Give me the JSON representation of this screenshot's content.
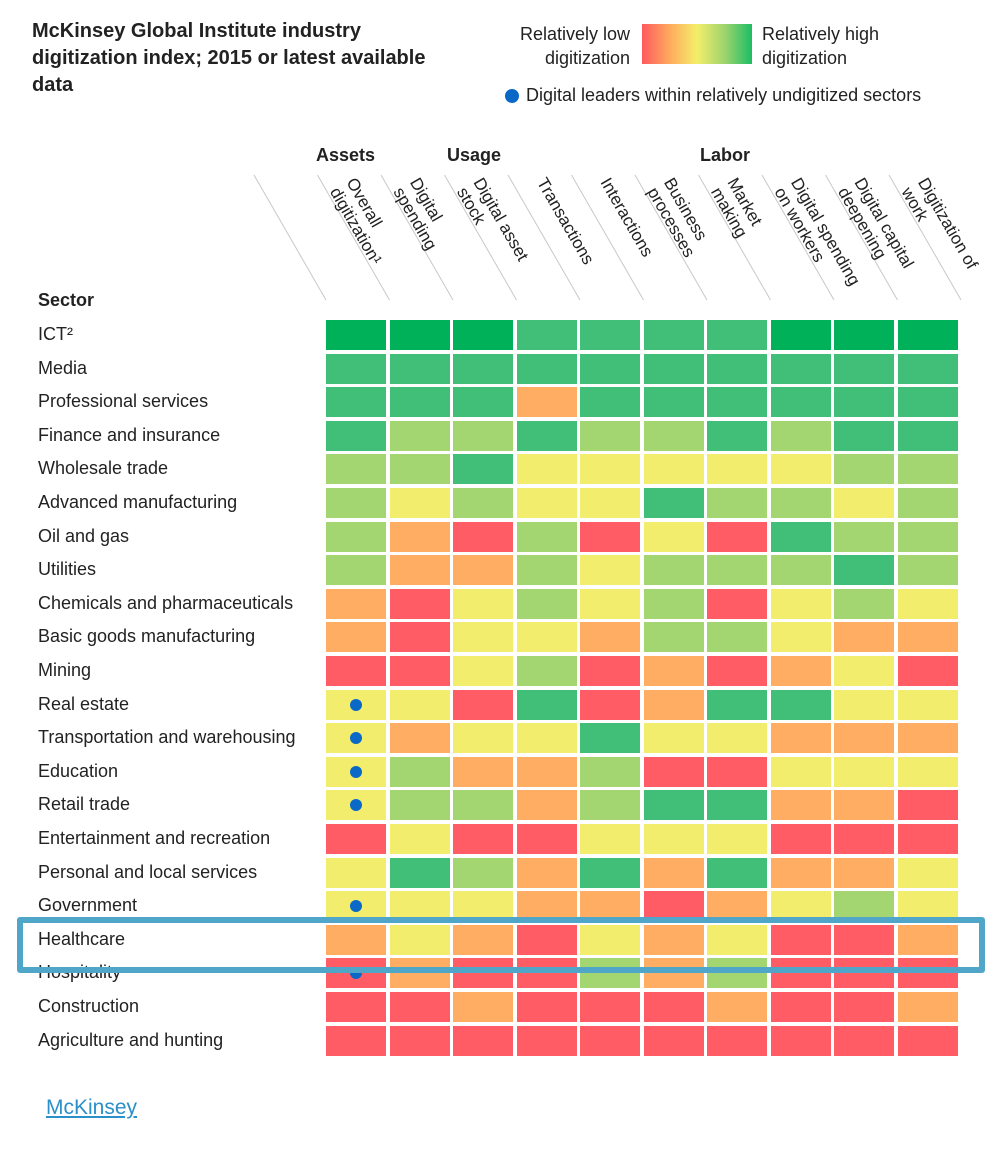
{
  "title": "McKinsey Global Institute industry digitization index; 2015 or latest available data",
  "legend": {
    "low_label": "Relatively low digitization",
    "high_label": "Relatively high digitization",
    "dot_label": "Digital leaders within relatively undigitized sectors",
    "dot_color": "#0a69c7"
  },
  "colors": {
    "dark_green": "#00b159",
    "green": "#41bf78",
    "light_green": "#a3d570",
    "yellow": "#f3ed6e",
    "orange": "#ffad63",
    "red": "#ff5c66",
    "highlight": "#4fa6c9"
  },
  "groups": {
    "assets": "Assets",
    "usage": "Usage",
    "labor": "Labor"
  },
  "sector_header": "Sector",
  "source_link": "McKinsey",
  "chart_data": {
    "type": "heatmap",
    "scale": [
      "red",
      "orange",
      "yellow",
      "light_green",
      "green",
      "dark_green"
    ],
    "columns": [
      "Overall digitization¹",
      "Digital spending",
      "Digital asset stock",
      "Transactions",
      "Interactions",
      "Business processes",
      "Market making",
      "Digital spending on workers",
      "Digital capital deepening",
      "Digitization of work"
    ],
    "rows": [
      {
        "sector": "ICT²",
        "leader": false,
        "values": [
          "dark_green",
          "dark_green",
          "dark_green",
          "green",
          "green",
          "green",
          "green",
          "dark_green",
          "dark_green",
          "dark_green"
        ]
      },
      {
        "sector": "Media",
        "leader": false,
        "values": [
          "green",
          "green",
          "green",
          "green",
          "green",
          "green",
          "green",
          "green",
          "green",
          "green"
        ]
      },
      {
        "sector": "Professional services",
        "leader": false,
        "values": [
          "green",
          "green",
          "green",
          "orange",
          "green",
          "green",
          "green",
          "green",
          "green",
          "green"
        ]
      },
      {
        "sector": "Finance and insurance",
        "leader": false,
        "values": [
          "green",
          "light_green",
          "light_green",
          "green",
          "light_green",
          "light_green",
          "green",
          "light_green",
          "green",
          "green"
        ]
      },
      {
        "sector": "Wholesale trade",
        "leader": false,
        "values": [
          "light_green",
          "light_green",
          "green",
          "yellow",
          "yellow",
          "yellow",
          "yellow",
          "yellow",
          "light_green",
          "light_green"
        ]
      },
      {
        "sector": "Advanced manufacturing",
        "leader": false,
        "values": [
          "light_green",
          "yellow",
          "light_green",
          "yellow",
          "yellow",
          "green",
          "light_green",
          "light_green",
          "yellow",
          "light_green"
        ]
      },
      {
        "sector": "Oil and gas",
        "leader": false,
        "values": [
          "light_green",
          "orange",
          "red",
          "light_green",
          "red",
          "yellow",
          "red",
          "green",
          "light_green",
          "light_green"
        ]
      },
      {
        "sector": "Utilities",
        "leader": false,
        "values": [
          "light_green",
          "orange",
          "orange",
          "light_green",
          "yellow",
          "light_green",
          "light_green",
          "light_green",
          "green",
          "light_green"
        ]
      },
      {
        "sector": "Chemicals and pharmaceuticals",
        "leader": false,
        "values": [
          "orange",
          "red",
          "yellow",
          "light_green",
          "yellow",
          "light_green",
          "red",
          "yellow",
          "light_green",
          "yellow"
        ]
      },
      {
        "sector": "Basic goods manufacturing",
        "leader": false,
        "values": [
          "orange",
          "red",
          "yellow",
          "yellow",
          "orange",
          "light_green",
          "light_green",
          "yellow",
          "orange",
          "orange"
        ]
      },
      {
        "sector": "Mining",
        "leader": false,
        "values": [
          "red",
          "red",
          "yellow",
          "light_green",
          "red",
          "orange",
          "red",
          "orange",
          "yellow",
          "red"
        ]
      },
      {
        "sector": "Real estate",
        "leader": true,
        "values": [
          "yellow",
          "yellow",
          "red",
          "green",
          "red",
          "orange",
          "green",
          "green",
          "yellow",
          "yellow"
        ]
      },
      {
        "sector": "Transportation and warehousing",
        "leader": true,
        "values": [
          "yellow",
          "orange",
          "yellow",
          "yellow",
          "green",
          "yellow",
          "yellow",
          "orange",
          "orange",
          "orange"
        ]
      },
      {
        "sector": "Education",
        "leader": true,
        "values": [
          "yellow",
          "light_green",
          "orange",
          "orange",
          "light_green",
          "red",
          "red",
          "yellow",
          "yellow",
          "yellow"
        ]
      },
      {
        "sector": "Retail trade",
        "leader": true,
        "values": [
          "yellow",
          "light_green",
          "light_green",
          "orange",
          "light_green",
          "green",
          "green",
          "orange",
          "orange",
          "red"
        ]
      },
      {
        "sector": "Entertainment and recreation",
        "leader": false,
        "values": [
          "red",
          "yellow",
          "red",
          "red",
          "yellow",
          "yellow",
          "yellow",
          "red",
          "red",
          "red"
        ]
      },
      {
        "sector": "Personal and local services",
        "leader": false,
        "values": [
          "yellow",
          "green",
          "light_green",
          "orange",
          "green",
          "orange",
          "green",
          "orange",
          "orange",
          "yellow"
        ]
      },
      {
        "sector": "Government",
        "leader": true,
        "values": [
          "yellow",
          "yellow",
          "yellow",
          "orange",
          "orange",
          "red",
          "orange",
          "yellow",
          "light_green",
          "yellow"
        ]
      },
      {
        "sector": "Healthcare",
        "leader": false,
        "highlighted": true,
        "values": [
          "orange",
          "yellow",
          "orange",
          "red",
          "yellow",
          "orange",
          "yellow",
          "red",
          "red",
          "orange"
        ]
      },
      {
        "sector": "Hospitality",
        "leader": true,
        "values": [
          "red",
          "orange",
          "red",
          "red",
          "light_green",
          "orange",
          "light_green",
          "red",
          "red",
          "red"
        ]
      },
      {
        "sector": "Construction",
        "leader": false,
        "values": [
          "red",
          "red",
          "orange",
          "red",
          "red",
          "red",
          "orange",
          "red",
          "red",
          "orange"
        ]
      },
      {
        "sector": "Agriculture and hunting",
        "leader": false,
        "values": [
          "red",
          "red",
          "red",
          "red",
          "red",
          "red",
          "red",
          "red",
          "red",
          "red"
        ]
      }
    ]
  }
}
